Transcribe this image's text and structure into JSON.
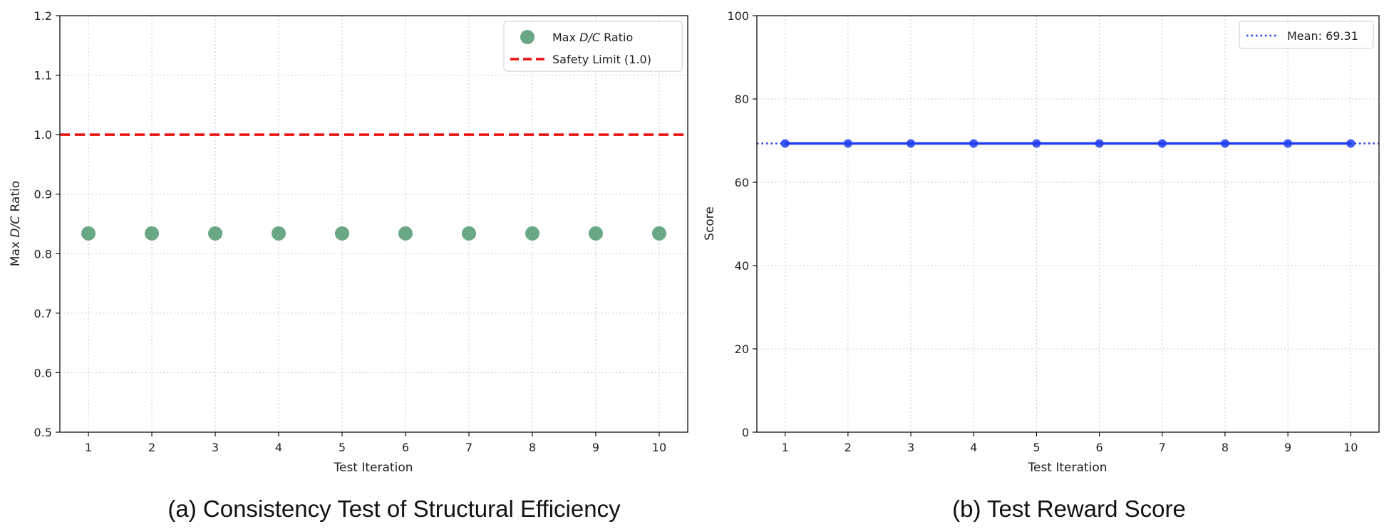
{
  "chart_data": [
    {
      "type": "scatter",
      "caption": "(a) Consistency Test of Structural Efficiency",
      "xlabel": "Test Iteration",
      "ylabel_pre": "Max ",
      "ylabel_it": "D/C",
      "ylabel_post": " Ratio",
      "xlim": [
        0.55,
        10.45
      ],
      "ylim": [
        0.5,
        1.2
      ],
      "x_ticks": [
        "1",
        "2",
        "3",
        "4",
        "5",
        "6",
        "7",
        "8",
        "9",
        "10"
      ],
      "y_ticks": [
        "0.5",
        "0.6",
        "0.7",
        "0.8",
        "0.9",
        "1.0",
        "1.1",
        "1.2"
      ],
      "grid": true,
      "legend_position": "top-right",
      "series": [
        {
          "name_pre": "Max ",
          "name_it": "D/C",
          "name_post": " Ratio",
          "color": "#5a9e78",
          "x": [
            1,
            2,
            3,
            4,
            5,
            6,
            7,
            8,
            9,
            10
          ],
          "y": [
            0.834,
            0.834,
            0.834,
            0.834,
            0.834,
            0.834,
            0.834,
            0.834,
            0.834,
            0.834
          ]
        }
      ],
      "reference_line": {
        "name": "Safety Limit (1.0)",
        "y": 1.0,
        "color": "#e8100f",
        "style": "dashed"
      }
    },
    {
      "type": "line",
      "caption": "(b) Test Reward Score",
      "xlabel": "Test Iteration",
      "ylabel": "Score",
      "xlim": [
        0.55,
        10.45
      ],
      "ylim": [
        0,
        100
      ],
      "x_ticks": [
        "1",
        "2",
        "3",
        "4",
        "5",
        "6",
        "7",
        "8",
        "9",
        "10"
      ],
      "y_ticks": [
        "0",
        "20",
        "40",
        "60",
        "80",
        "100"
      ],
      "grid": true,
      "legend_position": "top-right",
      "series": [
        {
          "color": "#1f3cf0",
          "x": [
            1,
            2,
            3,
            4,
            5,
            6,
            7,
            8,
            9,
            10
          ],
          "y": [
            69.31,
            69.31,
            69.31,
            69.31,
            69.31,
            69.31,
            69.31,
            69.31,
            69.31,
            69.31
          ]
        }
      ],
      "reference_line": {
        "name": "Mean: 69.31",
        "y": 69.31,
        "color": "#1f3cf0",
        "style": "dotted"
      }
    }
  ]
}
